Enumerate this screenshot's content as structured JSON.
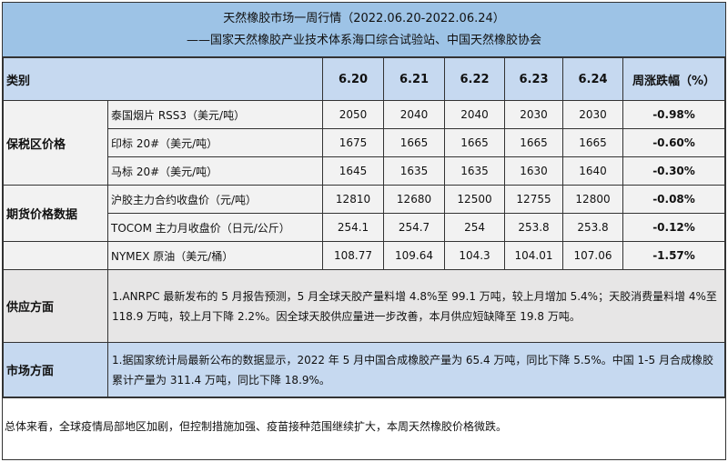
{
  "title": {
    "line1": "天然橡胶市场一周行情（2022.06.20-2022.06.24）",
    "line2": "——国家天然橡胶产业技术体系海口综合试验站、中国天然橡胶协会"
  },
  "header": {
    "category": "类别",
    "dates": [
      "6.20",
      "6.21",
      "6.22",
      "6.23",
      "6.24"
    ],
    "change": "周涨跌幅（%）"
  },
  "groups": [
    {
      "name": "保税区价格",
      "rows": [
        {
          "label": "泰国烟片 RSS3（美元/吨）",
          "values": [
            "2050",
            "2040",
            "2040",
            "2030",
            "2030"
          ],
          "change": "-0.98%"
        },
        {
          "label": "印标 20#（美元/吨）",
          "values": [
            "1675",
            "1665",
            "1665",
            "1665",
            "1665"
          ],
          "change": "-0.60%"
        },
        {
          "label": "马标 20#（美元/吨）",
          "values": [
            "1645",
            "1635",
            "1635",
            "1630",
            "1640"
          ],
          "change": "-0.30%"
        }
      ]
    },
    {
      "name": "期货价格数据",
      "rows": [
        {
          "label": "沪胶主力合约收盘价（元/吨）",
          "values": [
            "12810",
            "12680",
            "12500",
            "12755",
            "12800"
          ],
          "change": "-0.08%"
        },
        {
          "label": "TOCOM 主力月收盘价（日元/公斤）",
          "values": [
            "254.1",
            "254.7",
            "254",
            "253.8",
            "253.8"
          ],
          "change": "-0.12%"
        },
        {
          "label": "NYMEX 原油（美元/桶）",
          "values": [
            "108.77",
            "109.64",
            "104.3",
            "104.01",
            "107.06"
          ],
          "change": "-1.57%"
        }
      ]
    }
  ],
  "supply": {
    "label": "供应方面",
    "text": "1.ANRPC 最新发布的 5 月报告预测，5 月全球天胶产量料增 4.8%至 99.1 万吨，较上月增加 5.4%；天胶消费量料增 4%至 118.9 万吨，较上月下降 2.2%。因全球天胶供应量进一步改善，本月供应短缺降至 19.8 万吨。"
  },
  "market": {
    "label": "市场方面",
    "text": "1.据国家统计局最新公布的数据显示，2022 年 5 月中国合成橡胶产量为 65.4 万吨，同比下降 5.5%。中国 1-5 月合成橡胶累计产量为 311.4 万吨，同比下降 18.9%。"
  },
  "summary": "总体来看，全球疫情局部地区加剧，但控制措施加强、疫苗接种范围继续扩大，本周天然橡胶价格微跌。"
}
